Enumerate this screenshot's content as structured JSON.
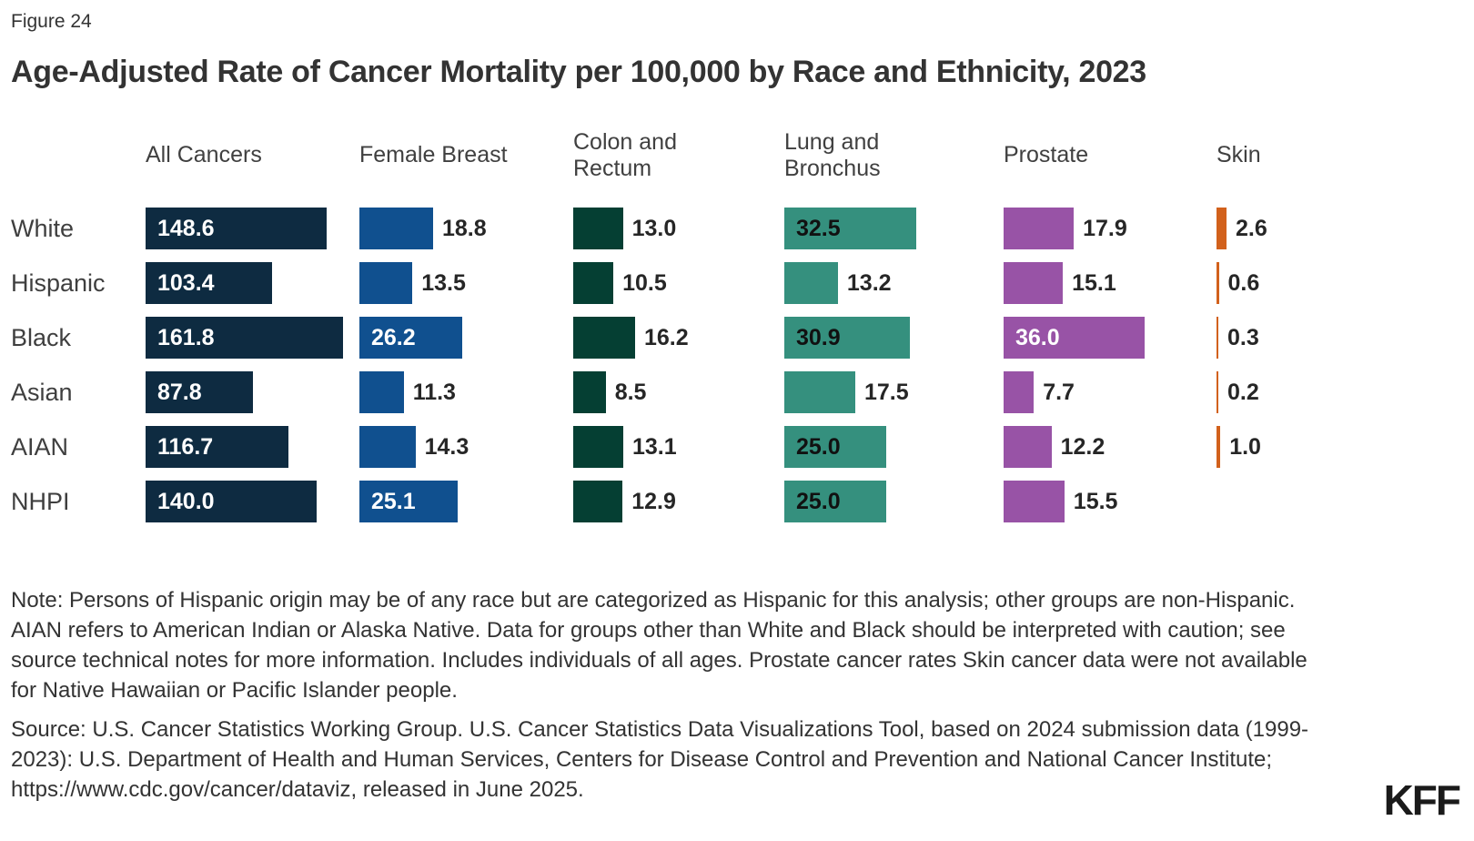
{
  "figure_label": "Figure 24",
  "title": "Age-Adjusted Rate of Cancer Mortality per 100,000 by Race and Ethnicity, 2023",
  "chart_data": {
    "type": "bar",
    "orientation": "horizontal",
    "title": "Age-Adjusted Rate of Cancer Mortality per 100,000 by Race and Ethnicity, 2023",
    "categories": [
      "White",
      "Hispanic",
      "Black",
      "Asian",
      "AIAN",
      "NHPI"
    ],
    "series": [
      {
        "name": "All Cancers",
        "color": "#0E2B41",
        "values": [
          148.6,
          103.4,
          161.8,
          87.8,
          116.7,
          140.0
        ]
      },
      {
        "name": "Female Breast",
        "color": "#10508F",
        "values": [
          18.8,
          13.5,
          26.2,
          11.3,
          14.3,
          25.1
        ]
      },
      {
        "name": "Colon and Rectum",
        "color": "#053F33",
        "values": [
          13.0,
          10.5,
          16.2,
          8.5,
          13.1,
          12.9
        ]
      },
      {
        "name": "Lung and Bronchus",
        "color": "#35907E",
        "values": [
          32.5,
          13.2,
          30.9,
          17.5,
          25.0,
          25.0
        ]
      },
      {
        "name": "Prostate",
        "color": "#9853A6",
        "values": [
          17.9,
          15.1,
          36.0,
          7.7,
          12.2,
          15.5
        ]
      },
      {
        "name": "Skin",
        "color": "#D2611C",
        "values": [
          2.6,
          0.6,
          0.3,
          0.2,
          1.0,
          null
        ]
      }
    ],
    "value_label_decimals": 1,
    "grid": false,
    "legend": "none",
    "axis_ticks": "none"
  },
  "note": "Note: Persons of Hispanic origin may be of any race but are categorized as Hispanic for this analysis; other groups are non-Hispanic. AIAN refers to American Indian or Alaska Native. Data for groups other than White and Black should be interpreted with caution; see source technical notes for more information. Includes individuals of all ages. Prostate cancer rates Skin cancer data were not available for Native Hawaiian or Pacific Islander people.",
  "source": "Source: U.S. Cancer Statistics Working Group. U.S. Cancer Statistics Data Visualizations Tool, based on 2024 submission data (1999-2023): U.S. Department of Health and Human Services, Centers for Disease Control and Prevention and National Cancer Institute; https://www.cdc.gov/cancer/dataviz, released in June 2025.",
  "logo": "KFF"
}
